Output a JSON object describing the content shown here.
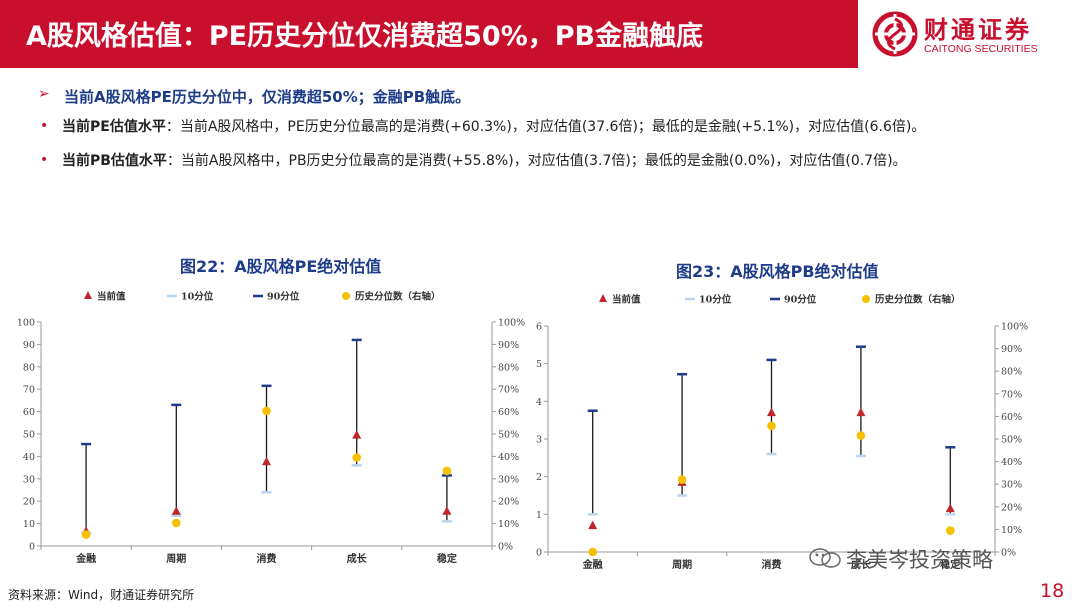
{
  "header": {
    "title": "A股风格估值：PE历史分位仅消费超50%，PB金融触底",
    "logo_cn": "财通证券",
    "logo_en": "CAITONG SECURITIES",
    "color": "#c8102e"
  },
  "bullets": {
    "main_marker": "➢",
    "main": "当前A股风格PE历史分位中，仅消费超50%；金融PB触底。",
    "sub_marker": "•",
    "items": [
      {
        "label": "当前PE估值水平",
        "text": "：当前A股风格中，PE历史分位最高的是消费(+60.3%)，对应估值(37.6倍)；最低的是金融(+5.1%)，对应估值(6.6倍)。"
      },
      {
        "label": "当前PB估值水平",
        "text": "：当前A股风格中，PB历史分位最高的是消费(+55.8%)，对应估值(3.7倍)；最低的是金融(0.0%)，对应估值(0.7倍)。"
      }
    ]
  },
  "chart_data": [
    {
      "type": "scatter",
      "title": "图22：A股风格PE绝对估值",
      "categories": [
        "金融",
        "周期",
        "消费",
        "成长",
        "稳定"
      ],
      "legend": [
        "当前值",
        "10分位",
        "90分位",
        "历史分位数（右轴）"
      ],
      "legend_position": "top",
      "series": [
        {
          "name": "当前值",
          "marker": "triangle",
          "color": "#c0282d",
          "axis": "left",
          "values": [
            6.6,
            15.5,
            37.6,
            49.5,
            15.5
          ]
        },
        {
          "name": "10分位",
          "marker": "dash",
          "color": "#bcd4ee",
          "axis": "left",
          "values": [
            6.0,
            13.5,
            24.0,
            36.0,
            11.0
          ]
        },
        {
          "name": "90分位",
          "marker": "dash",
          "color": "#1f3c88",
          "axis": "left",
          "values": [
            45.5,
            63.0,
            71.5,
            92.0,
            31.5
          ]
        },
        {
          "name": "历史分位数（右轴）",
          "marker": "circle",
          "color": "#f5c000",
          "axis": "right",
          "values": [
            5.1,
            10.3,
            60.3,
            39.5,
            33.5
          ]
        }
      ],
      "y_left": {
        "min": 0,
        "max": 100,
        "ticks": [
          "0",
          "10",
          "20",
          "30",
          "40",
          "50",
          "60",
          "70",
          "80",
          "90",
          "100"
        ]
      },
      "y_right": {
        "min": 0,
        "max": 100,
        "ticks": [
          "0%",
          "10%",
          "20%",
          "30%",
          "40%",
          "50%",
          "60%",
          "70%",
          "80%",
          "90%",
          "100%"
        ]
      },
      "grid": false
    },
    {
      "type": "scatter",
      "title": "图23：A股风格PB绝对估值",
      "categories": [
        "金融",
        "周期",
        "消费",
        "成长",
        "稳定"
      ],
      "legend": [
        "当前值",
        "10分位",
        "90分位",
        "历史分位数（右轴）"
      ],
      "legend_position": "top",
      "series": [
        {
          "name": "当前值",
          "marker": "triangle",
          "color": "#c0282d",
          "axis": "left",
          "values": [
            0.7,
            1.85,
            3.7,
            3.7,
            1.15
          ]
        },
        {
          "name": "10分位",
          "marker": "dash",
          "color": "#bcd4ee",
          "axis": "left",
          "values": [
            1.0,
            1.5,
            2.6,
            2.55,
            1.0
          ]
        },
        {
          "name": "90分位",
          "marker": "dash",
          "color": "#1f3c88",
          "axis": "left",
          "values": [
            3.75,
            4.72,
            5.1,
            5.45,
            2.78
          ]
        },
        {
          "name": "历史分位数（右轴）",
          "marker": "circle",
          "color": "#f5c000",
          "axis": "right",
          "values": [
            0.0,
            32.0,
            55.8,
            51.5,
            9.5
          ]
        }
      ],
      "y_left": {
        "min": 0,
        "max": 6,
        "ticks": [
          "0",
          "1",
          "2",
          "3",
          "4",
          "5",
          "6"
        ]
      },
      "y_right": {
        "min": 0,
        "max": 100,
        "ticks": [
          "0%",
          "10%",
          "20%",
          "30%",
          "40%",
          "50%",
          "60%",
          "70%",
          "80%",
          "90%",
          "100%"
        ]
      },
      "grid": false
    }
  ],
  "footer": {
    "source": "资料来源：Wind，财通证券研究所",
    "watermark": "李美岑投资策略",
    "watermark_icon": "wechat-icon",
    "page": "18"
  }
}
